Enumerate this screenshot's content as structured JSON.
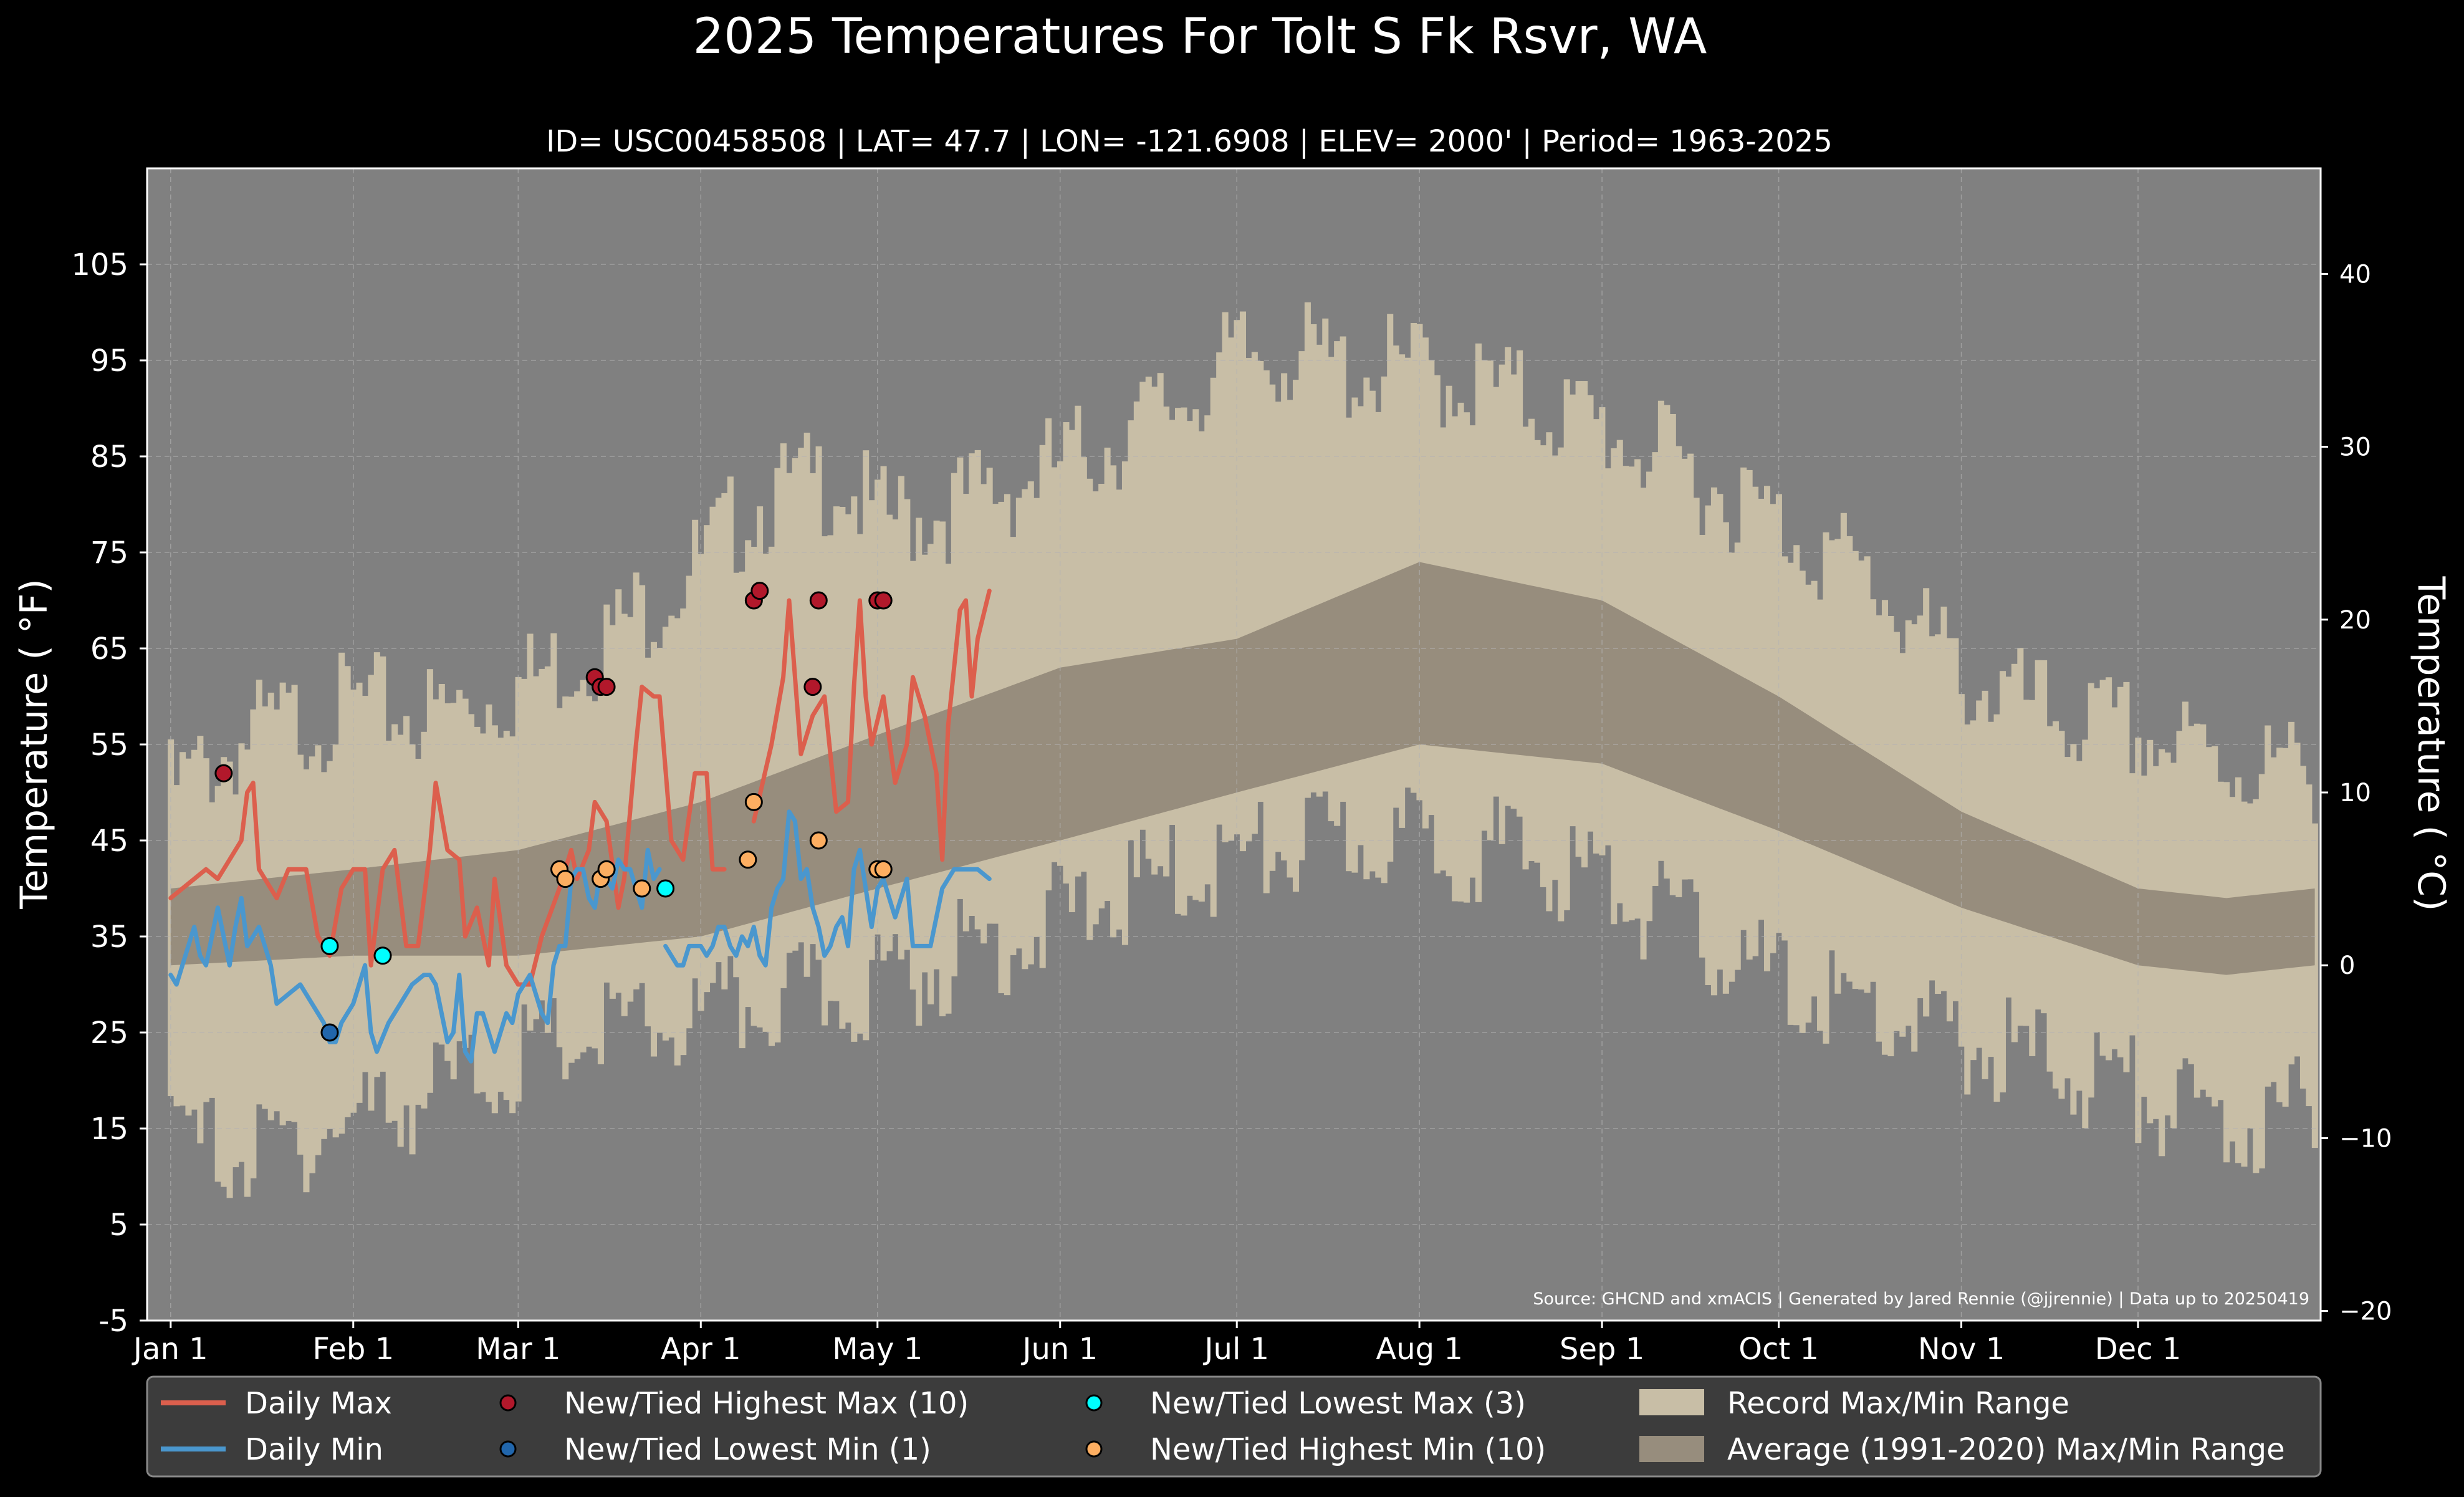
{
  "chart_data": {
    "type": "line",
    "title": "2025 Temperatures For Tolt S Fk Rsvr, WA",
    "subtitle": "ID= USC00458508 | LAT= 47.7 | LON= -121.6908 | ELEV= 2000' | Period= 1963-2025",
    "ylabel": "Temperature ( $^\\circ$F)",
    "ylabel_display": "Temperature ( °F)",
    "ylabel_right": "Temperature ( °C)",
    "source": "Source: GHCND and xmACIS | Generated by Jared Rennie (@jjrennie) | Data up to 20250419",
    "ylim": [
      -5,
      115
    ],
    "yticks": [
      -5,
      5,
      15,
      25,
      35,
      45,
      55,
      65,
      75,
      85,
      95,
      105
    ],
    "yticks_right": [
      {
        "label": "40",
        "c": 40
      },
      {
        "label": "30",
        "c": 30
      },
      {
        "label": "20",
        "c": 20
      },
      {
        "label": "10",
        "c": 10
      },
      {
        "label": "0",
        "c": 0
      },
      {
        "label": "−10",
        "c": -10
      },
      {
        "label": "−20",
        "c": -20
      }
    ],
    "xticks": [
      {
        "label": "Jan 1",
        "day": 1
      },
      {
        "label": "Feb 1",
        "day": 32
      },
      {
        "label": "Mar 1",
        "day": 60
      },
      {
        "label": "Apr 1",
        "day": 91
      },
      {
        "label": "May 1",
        "day": 121
      },
      {
        "label": "Jun 1",
        "day": 152
      },
      {
        "label": "Jul 1",
        "day": 182
      },
      {
        "label": "Aug 1",
        "day": 213
      },
      {
        "label": "Sep 1",
        "day": 244
      },
      {
        "label": "Oct 1",
        "day": 274
      },
      {
        "label": "Nov 1",
        "day": 305
      },
      {
        "label": "Dec 1",
        "day": 335
      }
    ],
    "xlim": [
      -3,
      366
    ],
    "grid": true,
    "legend_position": "bottom",
    "record_envelope_days": [
      1,
      15,
      32,
      46,
      60,
      75,
      91,
      100,
      115,
      121,
      135,
      152,
      165,
      182,
      190,
      200,
      213,
      225,
      244,
      260,
      274,
      290,
      305,
      320,
      335,
      350,
      365
    ],
    "record_max_env": [
      50,
      56,
      59,
      58,
      61,
      66,
      74,
      80,
      83,
      78,
      80,
      84,
      88,
      95,
      96,
      94,
      94,
      92,
      88,
      83,
      78,
      72,
      62,
      58,
      56,
      53,
      52
    ],
    "record_min_env": [
      14,
      12,
      16,
      19,
      22,
      25,
      26,
      28,
      29,
      30,
      33,
      37,
      40,
      43,
      44,
      45,
      45,
      44,
      41,
      35,
      30,
      27,
      24,
      22,
      19,
      15,
      17
    ],
    "avg_envelope_days": [
      1,
      32,
      60,
      91,
      121,
      152,
      182,
      213,
      244,
      274,
      305,
      335,
      350,
      365
    ],
    "avg_max": [
      40,
      42,
      44,
      49,
      56,
      63,
      66,
      74,
      70,
      60,
      48,
      40,
      39,
      40
    ],
    "avg_min": [
      32,
      33,
      33,
      35,
      40,
      45,
      50,
      55,
      53,
      46,
      38,
      32,
      31,
      32
    ],
    "series": [
      {
        "name": "Daily Max",
        "color": "#dc5f4d",
        "values": [
          [
            1,
            39
          ],
          [
            3,
            40
          ],
          [
            5,
            41
          ],
          [
            7,
            42
          ],
          [
            9,
            41
          ],
          [
            11,
            43
          ],
          [
            13,
            45
          ],
          [
            14,
            50
          ],
          [
            15,
            51
          ],
          [
            16,
            42
          ],
          [
            18,
            40
          ],
          [
            19,
            39
          ],
          [
            21,
            42
          ],
          [
            24,
            42
          ],
          [
            26,
            35
          ],
          [
            28,
            33
          ],
          [
            30,
            40
          ],
          [
            32,
            42
          ],
          [
            34,
            42
          ],
          [
            35,
            32
          ],
          [
            37,
            42
          ],
          [
            39,
            44
          ],
          [
            41,
            34
          ],
          [
            43,
            34
          ],
          [
            45,
            44
          ],
          [
            46,
            51
          ],
          [
            48,
            44
          ],
          [
            50,
            43
          ],
          [
            51,
            35
          ],
          [
            53,
            38
          ],
          [
            55,
            32
          ],
          [
            56,
            41
          ],
          [
            58,
            32
          ],
          [
            60,
            30
          ],
          [
            62,
            30
          ],
          [
            64,
            35
          ],
          [
            67,
            40
          ],
          [
            69,
            44
          ],
          [
            70,
            41
          ],
          [
            72,
            44
          ],
          [
            73,
            49
          ],
          [
            75,
            47
          ],
          [
            77,
            38
          ],
          [
            78,
            41
          ],
          [
            80,
            55
          ],
          [
            81,
            61
          ],
          [
            83,
            60
          ],
          [
            84,
            60
          ],
          [
            86,
            45
          ],
          [
            88,
            43
          ],
          [
            90,
            52
          ],
          [
            92,
            52
          ],
          [
            93,
            42
          ],
          [
            95,
            42
          ],
          [
            null,
            null
          ],
          [
            100,
            47
          ],
          [
            103,
            55
          ],
          [
            105,
            62
          ],
          [
            106,
            70
          ],
          [
            108,
            54
          ],
          [
            110,
            58
          ],
          [
            112,
            60
          ],
          [
            114,
            48
          ],
          [
            116,
            49
          ],
          [
            117,
            61
          ],
          [
            118,
            70
          ],
          [
            119,
            60
          ],
          [
            120,
            55
          ],
          [
            122,
            60
          ],
          [
            124,
            51
          ],
          [
            126,
            55
          ],
          [
            127,
            62
          ],
          [
            129,
            58
          ],
          [
            131,
            52
          ],
          [
            132,
            43
          ],
          [
            133,
            57
          ],
          [
            135,
            69
          ],
          [
            136,
            70
          ],
          [
            137,
            60
          ],
          [
            138,
            66
          ],
          [
            140,
            71
          ]
        ]
      },
      {
        "name": "Daily Min",
        "color": "#4a97ce",
        "values": [
          [
            1,
            31
          ],
          [
            2,
            30
          ],
          [
            4,
            34
          ],
          [
            5,
            36
          ],
          [
            6,
            33
          ],
          [
            7,
            32
          ],
          [
            9,
            38
          ],
          [
            10,
            35
          ],
          [
            11,
            32
          ],
          [
            12,
            36
          ],
          [
            13,
            39
          ],
          [
            14,
            34
          ],
          [
            16,
            36
          ],
          [
            18,
            32
          ],
          [
            19,
            28
          ],
          [
            21,
            29
          ],
          [
            23,
            30
          ],
          [
            25,
            28
          ],
          [
            27,
            26
          ],
          [
            28,
            24
          ],
          [
            29,
            24
          ],
          [
            30,
            26
          ],
          [
            32,
            28
          ],
          [
            33,
            30
          ],
          [
            34,
            32
          ],
          [
            35,
            25
          ],
          [
            36,
            23
          ],
          [
            38,
            26
          ],
          [
            40,
            28
          ],
          [
            42,
            30
          ],
          [
            44,
            31
          ],
          [
            45,
            31
          ],
          [
            46,
            30
          ],
          [
            48,
            24
          ],
          [
            49,
            25
          ],
          [
            50,
            31
          ],
          [
            51,
            23
          ],
          [
            52,
            22
          ],
          [
            53,
            27
          ],
          [
            54,
            27
          ],
          [
            56,
            23
          ],
          [
            58,
            27
          ],
          [
            59,
            26
          ],
          [
            60,
            29
          ],
          [
            62,
            31
          ],
          [
            64,
            27
          ],
          [
            65,
            26
          ],
          [
            66,
            32
          ],
          [
            67,
            34
          ],
          [
            68,
            34
          ],
          [
            69,
            41
          ],
          [
            70,
            42
          ],
          [
            71,
            42
          ],
          [
            72,
            39
          ],
          [
            73,
            38
          ],
          [
            74,
            42
          ],
          [
            75,
            41
          ],
          [
            76,
            40
          ],
          [
            77,
            43
          ],
          [
            78,
            42
          ],
          [
            79,
            42
          ],
          [
            80,
            40
          ],
          [
            81,
            38
          ],
          [
            82,
            44
          ],
          [
            83,
            41
          ],
          [
            84,
            42
          ],
          [
            null,
            null
          ],
          [
            85,
            34
          ],
          [
            86,
            33
          ],
          [
            87,
            32
          ],
          [
            88,
            32
          ],
          [
            89,
            34
          ],
          [
            90,
            34
          ],
          [
            91,
            34
          ],
          [
            92,
            33
          ],
          [
            93,
            34
          ],
          [
            94,
            36
          ],
          [
            95,
            36
          ],
          [
            96,
            34
          ],
          [
            97,
            33
          ],
          [
            98,
            35
          ],
          [
            99,
            34
          ],
          [
            100,
            36
          ],
          [
            101,
            33
          ],
          [
            102,
            32
          ],
          [
            103,
            38
          ],
          [
            104,
            40
          ],
          [
            105,
            41
          ],
          [
            106,
            48
          ],
          [
            107,
            47
          ],
          [
            108,
            41
          ],
          [
            109,
            42
          ],
          [
            110,
            38
          ],
          [
            111,
            36
          ],
          [
            112,
            33
          ],
          [
            113,
            34
          ],
          [
            114,
            36
          ],
          [
            115,
            37
          ],
          [
            116,
            34
          ],
          [
            117,
            42
          ],
          [
            118,
            44
          ],
          [
            119,
            40
          ],
          [
            120,
            36
          ],
          [
            121,
            40
          ],
          [
            122,
            41
          ],
          [
            124,
            37
          ],
          [
            126,
            41
          ],
          [
            127,
            34
          ],
          [
            128,
            34
          ],
          [
            130,
            34
          ],
          [
            132,
            40
          ],
          [
            134,
            42
          ],
          [
            136,
            42
          ],
          [
            138,
            42
          ],
          [
            140,
            41
          ]
        ]
      }
    ],
    "new_highest_max": {
      "name": "New/Tied Highest Max (10)",
      "color": "#b2182b",
      "points": [
        [
          10,
          52
        ],
        [
          73,
          62
        ],
        [
          74,
          61
        ],
        [
          75,
          61
        ],
        [
          100,
          70
        ],
        [
          101,
          71
        ],
        [
          110,
          61
        ],
        [
          111,
          70
        ],
        [
          121,
          70
        ],
        [
          122,
          70
        ]
      ]
    },
    "new_lowest_min": {
      "name": "New/Tied Lowest Min (1)",
      "color": "#2166ac",
      "points": [
        [
          28,
          25
        ]
      ]
    },
    "new_lowest_max": {
      "name": "New/Tied Lowest Max (3)",
      "color": "#00ffff",
      "points": [
        [
          28,
          34
        ],
        [
          37,
          33
        ],
        [
          85,
          40
        ]
      ]
    },
    "new_highest_min": {
      "name": "New/Tied Highest Min (10)",
      "color": "#fdae61",
      "points": [
        [
          67,
          42
        ],
        [
          68,
          41
        ],
        [
          74,
          41
        ],
        [
          75,
          42
        ],
        [
          81,
          40
        ],
        [
          99,
          43
        ],
        [
          100,
          49
        ],
        [
          111,
          45
        ],
        [
          121,
          42
        ],
        [
          122,
          42
        ]
      ]
    },
    "legend": {
      "daily_max": "Daily Max",
      "daily_min": "Daily Min",
      "new_highest_max": "New/Tied Highest Max (10)",
      "new_lowest_min": "New/Tied Lowest Min (1)",
      "new_lowest_max": "New/Tied Lowest Max (3)",
      "new_highest_min": "New/Tied Highest Min (10)",
      "record_range": "Record Max/Min Range",
      "average_range": "Average (1991-2020) Max/Min Range"
    },
    "colors": {
      "background": "#000000",
      "plot_background": "#808080",
      "record_range": "#c8bea6",
      "average_range": "#978d7d",
      "grid": "#b4b4b4",
      "legend_background": "#3c3c3c"
    }
  }
}
